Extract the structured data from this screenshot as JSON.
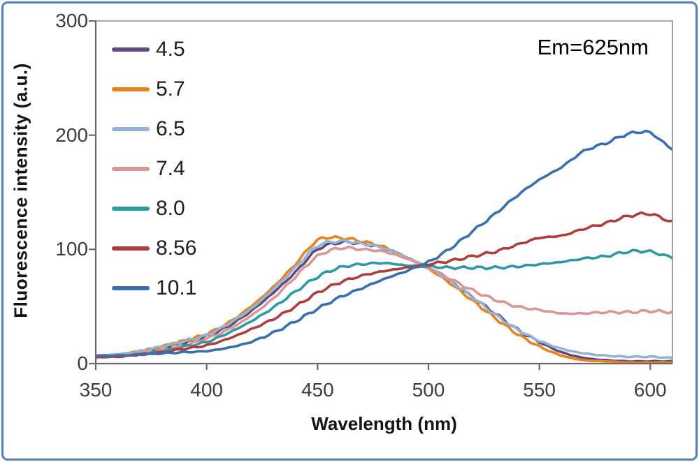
{
  "figure": {
    "background": "#ffffff",
    "border_color": "#4f81bd"
  },
  "chart_data": {
    "type": "line",
    "title": "",
    "annotation": "Em=625nm",
    "xlabel": "Wavelength (nm)",
    "ylabel": "Fluorescence intensity (a.u.)",
    "xlim": [
      350,
      610
    ],
    "ylim": [
      0,
      300
    ],
    "xticks": [
      350,
      400,
      450,
      500,
      550,
      600
    ],
    "yticks": [
      0,
      100,
      200,
      300
    ],
    "grid": false,
    "legend_position": "upper-left-inside",
    "legend_title": "",
    "axis_color": "#6a6a6a",
    "plot_border_color": "#8c8c8c",
    "tick_label_color": "#3d3d3d",
    "x": [
      350,
      360,
      370,
      380,
      390,
      400,
      410,
      420,
      430,
      440,
      450,
      460,
      470,
      480,
      490,
      500,
      510,
      520,
      530,
      540,
      550,
      560,
      570,
      580,
      590,
      600,
      610
    ],
    "series": [
      {
        "name": "4.5",
        "color": "#604a7b",
        "values": [
          7,
          8,
          10,
          14,
          18,
          24,
          33,
          46,
          62,
          80,
          100,
          106,
          105,
          101,
          93,
          84,
          72,
          58,
          44,
          30,
          19,
          10,
          5,
          3,
          2,
          2,
          2
        ]
      },
      {
        "name": "5.7",
        "color": "#e8821e",
        "values": [
          7,
          8,
          11,
          15,
          20,
          26,
          36,
          50,
          67,
          87,
          108,
          110,
          107,
          102,
          93,
          83,
          70,
          55,
          40,
          26,
          15,
          7,
          3,
          2,
          1,
          1,
          1
        ]
      },
      {
        "name": "6.5",
        "color": "#95b3d7",
        "values": [
          7,
          8,
          11,
          15,
          20,
          25,
          35,
          48,
          65,
          84,
          103,
          107,
          105,
          101,
          93,
          84,
          72,
          58,
          43,
          30,
          20,
          13,
          9,
          7,
          6,
          6,
          5
        ]
      },
      {
        "name": "7.4",
        "color": "#d99694",
        "values": [
          5,
          7,
          9,
          12,
          16,
          22,
          30,
          42,
          57,
          76,
          94,
          101,
          100,
          98,
          92,
          84,
          74,
          64,
          56,
          50,
          47,
          44,
          44,
          45,
          45,
          46,
          45
        ]
      },
      {
        "name": "8.0",
        "color": "#2e99a3",
        "values": [
          6,
          7,
          8,
          11,
          15,
          19,
          27,
          37,
          49,
          63,
          76,
          84,
          87,
          88,
          86,
          85,
          84,
          84,
          84,
          85,
          87,
          89,
          92,
          94,
          98,
          98,
          93
        ]
      },
      {
        "name": "8.56",
        "color": "#ae3e3b",
        "values": [
          6,
          6,
          8,
          10,
          13,
          16,
          22,
          30,
          39,
          50,
          62,
          71,
          77,
          81,
          84,
          87,
          90,
          94,
          98,
          104,
          110,
          112,
          118,
          123,
          129,
          131,
          124
        ]
      },
      {
        "name": "10.1",
        "color": "#3a6fae",
        "values": [
          7,
          7,
          8,
          9,
          10,
          11,
          14,
          19,
          27,
          37,
          48,
          58,
          66,
          74,
          81,
          89,
          101,
          116,
          131,
          147,
          161,
          172,
          186,
          193,
          201,
          202,
          188
        ]
      }
    ]
  }
}
